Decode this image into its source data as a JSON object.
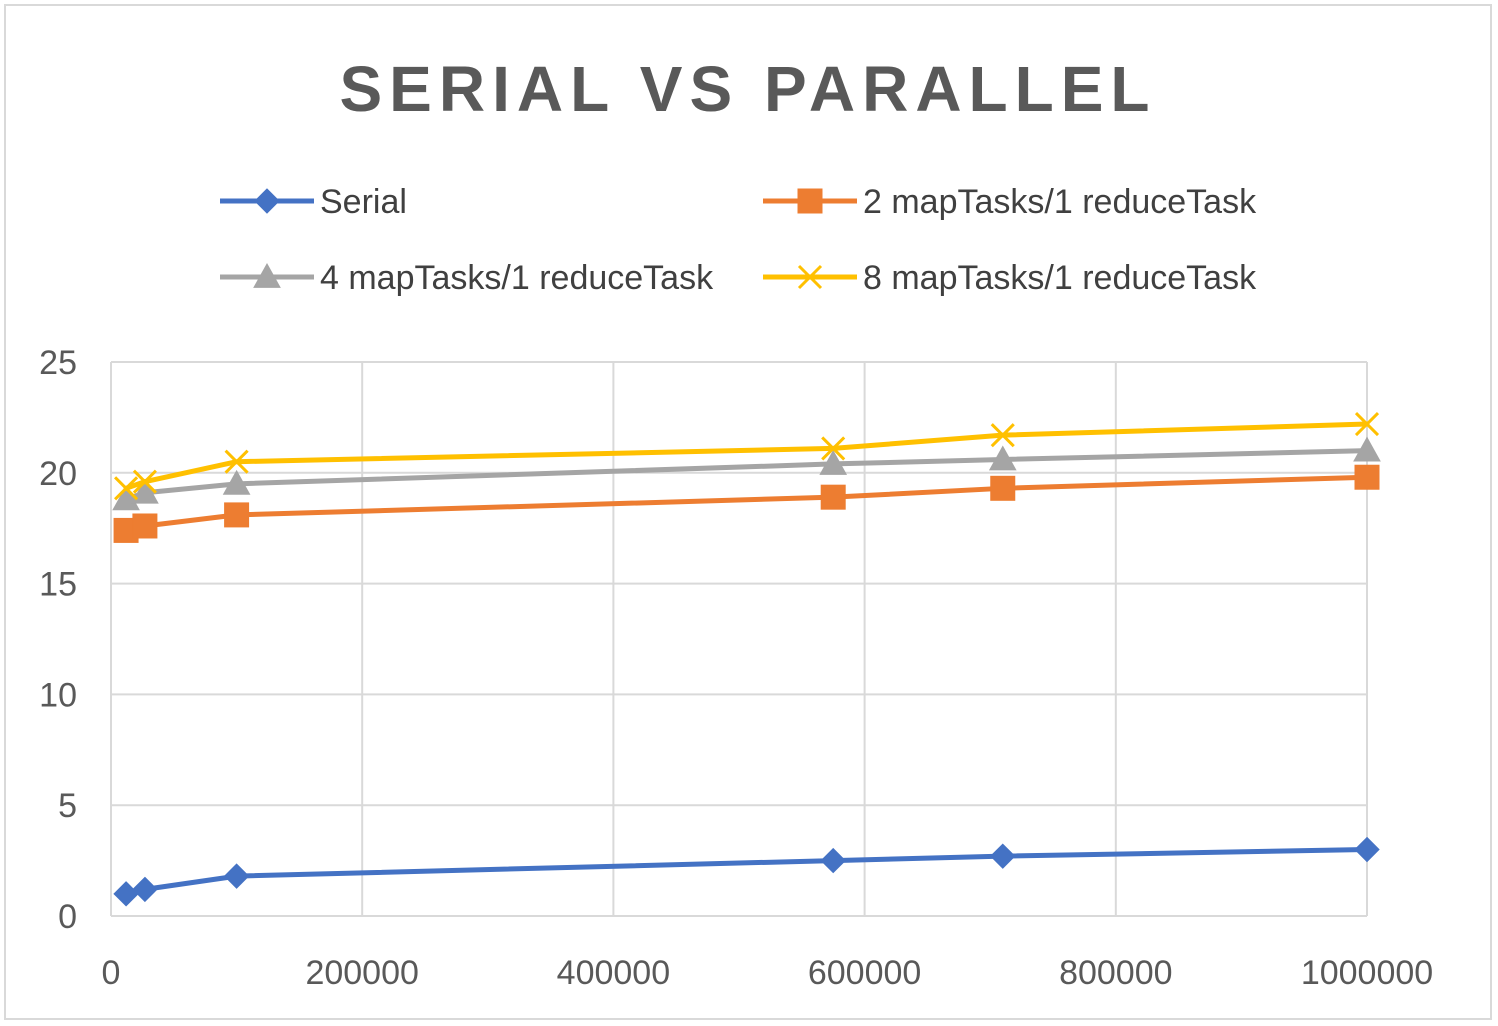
{
  "chart_data": {
    "type": "line",
    "title": "SERIAL VS PARALLEL",
    "xlabel": "",
    "ylabel": "",
    "xlim": [
      0,
      1000000
    ],
    "ylim": [
      0,
      25
    ],
    "x_ticks": [
      "0",
      "200000",
      "400000",
      "600000",
      "800000",
      "1000000"
    ],
    "y_ticks": [
      "0",
      "5",
      "10",
      "15",
      "20",
      "25"
    ],
    "grid": true,
    "legend_position": "top",
    "x": [
      12000,
      27000,
      100000,
      575000,
      710000,
      1000000
    ],
    "series": [
      {
        "name": "Serial",
        "color": "#4472c4",
        "marker": "diamond",
        "values": [
          1.0,
          1.2,
          1.8,
          2.5,
          2.7,
          3.0
        ]
      },
      {
        "name": "2 mapTasks/1 reduceTask",
        "color": "#ed7d31",
        "marker": "square",
        "values": [
          17.4,
          17.6,
          18.1,
          18.9,
          19.3,
          19.8
        ]
      },
      {
        "name": "4 mapTasks/1 reduceTask",
        "color": "#a5a5a5",
        "marker": "triangle",
        "values": [
          18.8,
          19.1,
          19.5,
          20.4,
          20.6,
          21.0
        ]
      },
      {
        "name": "8 mapTasks/1 reduceTask",
        "color": "#ffc000",
        "marker": "x",
        "values": [
          19.3,
          19.6,
          20.5,
          21.1,
          21.7,
          22.2
        ]
      }
    ]
  }
}
